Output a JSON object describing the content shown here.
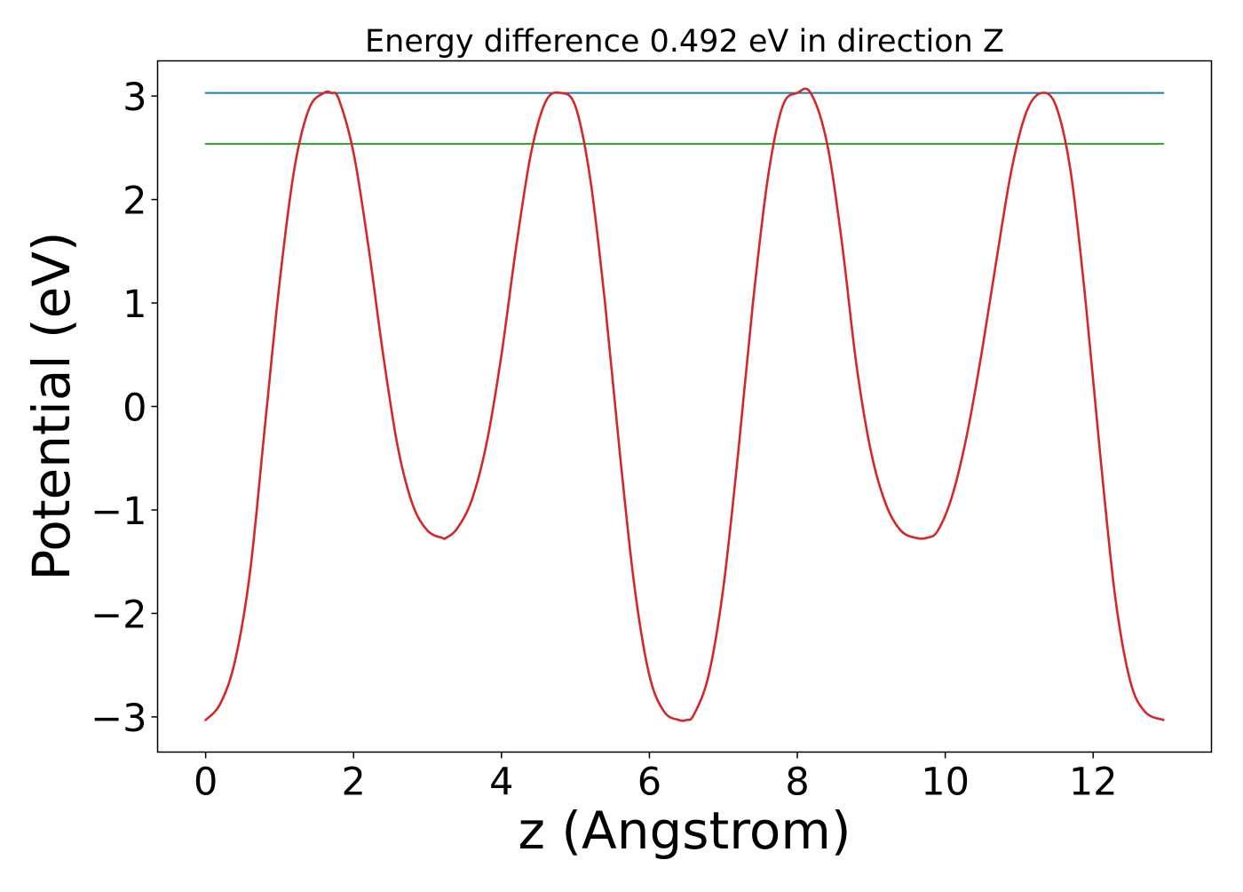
{
  "chart_data": {
    "type": "line",
    "title": "Energy difference 0.492 eV in direction Z",
    "xlabel": "z (Angstrom)",
    "ylabel": "Potential (eV)",
    "xlim": [
      -0.65,
      13.6
    ],
    "ylim": [
      -3.34,
      3.34
    ],
    "xticks": [
      0,
      2,
      4,
      6,
      8,
      10,
      12
    ],
    "xtick_labels": [
      "0",
      "2",
      "4",
      "6",
      "8",
      "10",
      "12"
    ],
    "yticks": [
      -3,
      -2,
      -1,
      0,
      1,
      2,
      3
    ],
    "ytick_labels": [
      "−3",
      "−2",
      "−1",
      "0",
      "1",
      "2",
      "3"
    ],
    "grid": false,
    "legend": "none",
    "series": [
      {
        "color": "#d62728",
        "x": [
          0,
          0.2,
          0.4,
          0.6,
          0.8,
          1.0,
          1.2,
          1.4,
          1.6,
          1.7,
          1.8,
          2.0,
          2.2,
          2.4,
          2.6,
          2.8,
          3.0,
          3.2,
          3.25,
          3.4,
          3.6,
          3.8,
          4.0,
          4.2,
          4.4,
          4.6,
          4.8,
          5.0,
          5.2,
          5.4,
          5.6,
          5.8,
          6.0,
          6.2,
          6.4,
          6.5,
          6.6,
          6.8,
          7.0,
          7.2,
          7.4,
          7.6,
          7.8,
          8.0,
          8.18,
          8.4,
          8.6,
          8.8,
          9.0,
          9.2,
          9.4,
          9.6,
          9.75,
          9.9,
          10.1,
          10.3,
          10.5,
          10.7,
          10.9,
          11.1,
          11.3,
          11.5,
          11.7,
          11.9,
          12.1,
          12.3,
          12.5,
          12.7,
          12.95
        ],
        "y": [
          -3.03,
          -2.87,
          -2.45,
          -1.6,
          -0.2,
          1.2,
          2.3,
          2.88,
          3.03,
          3.03,
          2.97,
          2.45,
          1.55,
          0.5,
          -0.4,
          -0.95,
          -1.2,
          -1.27,
          -1.27,
          -1.18,
          -0.9,
          -0.35,
          0.5,
          1.55,
          2.45,
          2.95,
          3.03,
          2.9,
          2.2,
          1.0,
          -0.45,
          -1.75,
          -2.6,
          -2.95,
          -3.03,
          -3.03,
          -2.98,
          -2.6,
          -1.75,
          -0.45,
          1.0,
          2.2,
          2.9,
          3.03,
          3.03,
          2.55,
          1.6,
          0.4,
          -0.45,
          -0.95,
          -1.2,
          -1.27,
          -1.27,
          -1.2,
          -0.85,
          -0.25,
          0.55,
          1.45,
          2.3,
          2.85,
          3.03,
          2.9,
          2.25,
          1.0,
          -0.5,
          -1.85,
          -2.65,
          -2.95,
          -3.03
        ]
      },
      {
        "color": "#1f77b4",
        "x": [
          0,
          12.95
        ],
        "y": [
          3.03,
          3.03
        ]
      },
      {
        "color": "#2ca02c",
        "x": [
          0,
          12.95
        ],
        "y": [
          2.538,
          2.538
        ]
      }
    ]
  }
}
